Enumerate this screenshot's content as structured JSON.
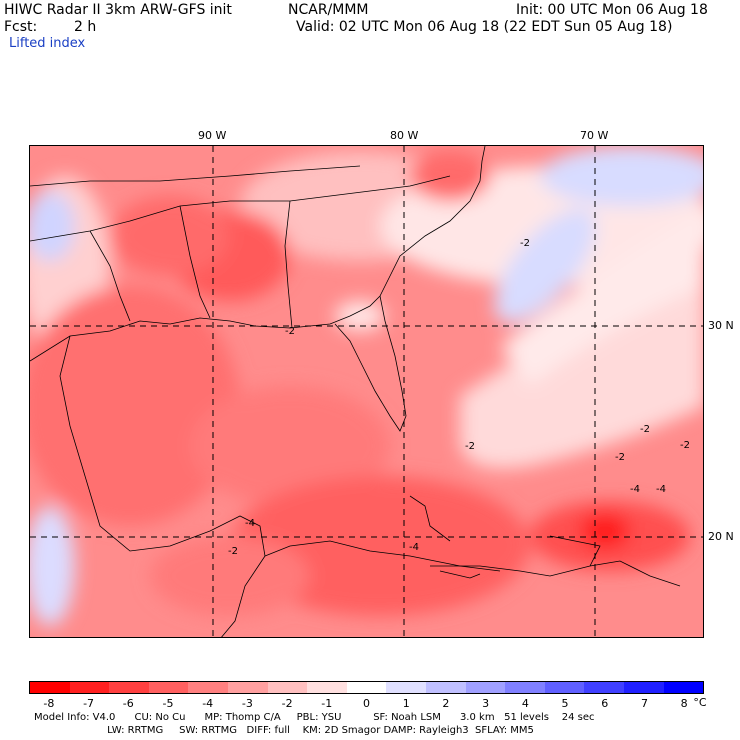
{
  "header": {
    "model": "HIWC Radar II 3km ARW-GFS init",
    "center": "NCAR/MMM",
    "init": "Init: 00 UTC Mon 06 Aug 18",
    "fcst_label": "Fcst:",
    "fcst_value": "2 h",
    "valid": "Valid: 02 UTC Mon 06 Aug 18 (22 EDT Sun 05 Aug 18)",
    "field": "Lifted index"
  },
  "map": {
    "lon_labels": [
      "90 W",
      "80 W",
      "70 W"
    ],
    "lat_labels": [
      "30 N",
      "20 N"
    ],
    "contour_labels": [
      "-2",
      "-2",
      "-2",
      "-2",
      "-2",
      "-2",
      "-2",
      "-4",
      "-4",
      "-4",
      "-4"
    ]
  },
  "colorbar": {
    "colors": [
      "#ff0000",
      "#ff2020",
      "#ff4040",
      "#ff6060",
      "#ff8080",
      "#ffa0a0",
      "#ffc0c0",
      "#ffe0e0",
      "#ffffff",
      "#e0e0ff",
      "#c0c0ff",
      "#a0a0ff",
      "#8080ff",
      "#6060ff",
      "#4040ff",
      "#2020ff",
      "#0000ff"
    ],
    "ticks": [
      "-8",
      "-7",
      "-6",
      "-5",
      "-4",
      "-3",
      "-2",
      "-1",
      "0",
      "1",
      "2",
      "3",
      "4",
      "5",
      "6",
      "7",
      "8"
    ],
    "unit": "°C"
  },
  "footer": {
    "line1": "Model Info: V4.0      CU: No Cu      MP: Thomp C/A     PBL: YSU          SF: Noah LSM      3.0 km   51 levels    24 sec",
    "line2": "                       LW: RRTMG     SW: RRTMG   DIFF: full    KM: 2D Smagor DAMP: Rayleigh3  SFLAY: MM5"
  }
}
